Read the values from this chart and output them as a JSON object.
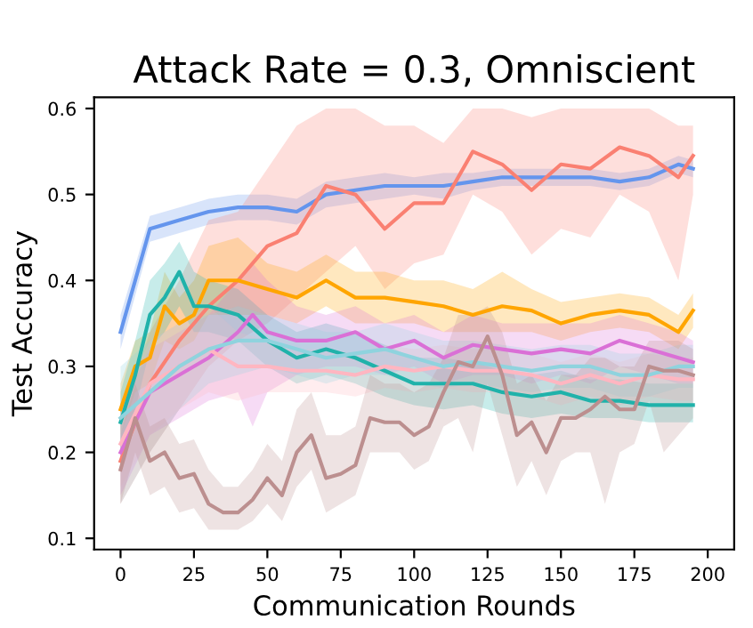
{
  "chart_data": {
    "type": "line",
    "title": "Attack Rate = 0.3, Omniscient",
    "xlabel": "Communication Rounds",
    "ylabel": "Test Accuracy",
    "xlim": [
      -9,
      209
    ],
    "ylim": [
      0.087,
      0.613
    ],
    "xticks": [
      0,
      25,
      50,
      75,
      100,
      125,
      150,
      175,
      200
    ],
    "yticks": [
      0.1,
      0.2,
      0.3,
      0.4,
      0.5,
      0.6
    ],
    "grid": false,
    "legend": false,
    "series": [
      {
        "color": "#6495ed",
        "x": [
          0,
          10,
          20,
          30,
          40,
          50,
          60,
          70,
          80,
          90,
          100,
          110,
          120,
          130,
          140,
          150,
          160,
          170,
          180,
          190,
          195
        ],
        "values": [
          0.34,
          0.46,
          0.47,
          0.48,
          0.485,
          0.485,
          0.48,
          0.5,
          0.505,
          0.51,
          0.51,
          0.51,
          0.515,
          0.52,
          0.52,
          0.52,
          0.52,
          0.515,
          0.52,
          0.535,
          0.53
        ],
        "lower": [
          0.32,
          0.445,
          0.455,
          0.465,
          0.47,
          0.47,
          0.465,
          0.485,
          0.49,
          0.495,
          0.5,
          0.495,
          0.505,
          0.51,
          0.51,
          0.51,
          0.51,
          0.505,
          0.51,
          0.525,
          0.52
        ],
        "upper": [
          0.36,
          0.475,
          0.485,
          0.495,
          0.5,
          0.5,
          0.495,
          0.515,
          0.52,
          0.525,
          0.52,
          0.525,
          0.525,
          0.53,
          0.53,
          0.53,
          0.53,
          0.525,
          0.53,
          0.545,
          0.54
        ]
      },
      {
        "color": "#fa8072",
        "x": [
          0,
          10,
          20,
          30,
          40,
          50,
          60,
          70,
          80,
          90,
          100,
          110,
          120,
          130,
          140,
          150,
          160,
          170,
          180,
          190,
          195
        ],
        "values": [
          0.19,
          0.28,
          0.33,
          0.37,
          0.4,
          0.44,
          0.455,
          0.51,
          0.5,
          0.46,
          0.49,
          0.49,
          0.55,
          0.535,
          0.505,
          0.535,
          0.53,
          0.555,
          0.545,
          0.52,
          0.545
        ],
        "lower": [
          0.14,
          0.2,
          0.25,
          0.3,
          0.33,
          0.35,
          0.38,
          0.41,
          0.44,
          0.39,
          0.42,
          0.43,
          0.5,
          0.48,
          0.43,
          0.46,
          0.45,
          0.5,
          0.48,
          0.4,
          0.5
        ],
        "upper": [
          0.24,
          0.34,
          0.4,
          0.47,
          0.48,
          0.53,
          0.58,
          0.6,
          0.6,
          0.58,
          0.58,
          0.56,
          0.6,
          0.6,
          0.59,
          0.6,
          0.6,
          0.6,
          0.6,
          0.58,
          0.58
        ]
      },
      {
        "color": "#ffa500",
        "x": [
          0,
          5,
          10,
          15,
          20,
          25,
          30,
          40,
          50,
          60,
          70,
          80,
          90,
          100,
          110,
          120,
          130,
          140,
          150,
          160,
          170,
          180,
          190,
          195
        ],
        "values": [
          0.25,
          0.3,
          0.31,
          0.37,
          0.35,
          0.36,
          0.4,
          0.4,
          0.39,
          0.38,
          0.4,
          0.38,
          0.38,
          0.375,
          0.37,
          0.36,
          0.37,
          0.365,
          0.35,
          0.36,
          0.365,
          0.36,
          0.34,
          0.365
        ],
        "lower": [
          0.22,
          0.27,
          0.28,
          0.33,
          0.32,
          0.33,
          0.36,
          0.36,
          0.36,
          0.35,
          0.37,
          0.35,
          0.35,
          0.35,
          0.34,
          0.34,
          0.34,
          0.34,
          0.33,
          0.34,
          0.345,
          0.34,
          0.32,
          0.345
        ],
        "upper": [
          0.28,
          0.33,
          0.34,
          0.41,
          0.38,
          0.4,
          0.44,
          0.45,
          0.42,
          0.41,
          0.43,
          0.41,
          0.41,
          0.4,
          0.4,
          0.39,
          0.41,
          0.39,
          0.375,
          0.38,
          0.385,
          0.38,
          0.36,
          0.385
        ]
      },
      {
        "color": "#20b2aa",
        "x": [
          0,
          5,
          10,
          15,
          20,
          25,
          30,
          40,
          50,
          60,
          70,
          80,
          90,
          100,
          110,
          120,
          130,
          140,
          150,
          160,
          170,
          180,
          190,
          195
        ],
        "values": [
          0.235,
          0.29,
          0.36,
          0.38,
          0.41,
          0.37,
          0.37,
          0.36,
          0.33,
          0.31,
          0.32,
          0.31,
          0.295,
          0.28,
          0.28,
          0.28,
          0.27,
          0.265,
          0.27,
          0.26,
          0.26,
          0.255,
          0.255,
          0.255
        ],
        "lower": [
          0.2,
          0.25,
          0.32,
          0.34,
          0.37,
          0.34,
          0.34,
          0.33,
          0.3,
          0.28,
          0.29,
          0.28,
          0.265,
          0.255,
          0.25,
          0.255,
          0.245,
          0.24,
          0.245,
          0.24,
          0.24,
          0.235,
          0.235,
          0.235
        ],
        "upper": [
          0.27,
          0.33,
          0.4,
          0.42,
          0.445,
          0.41,
          0.4,
          0.39,
          0.36,
          0.34,
          0.35,
          0.34,
          0.325,
          0.31,
          0.31,
          0.305,
          0.295,
          0.29,
          0.295,
          0.285,
          0.285,
          0.28,
          0.28,
          0.28
        ]
      },
      {
        "color": "#da70d6",
        "x": [
          0,
          10,
          20,
          30,
          40,
          45,
          50,
          60,
          70,
          80,
          90,
          100,
          110,
          120,
          130,
          140,
          150,
          160,
          170,
          180,
          190,
          195
        ],
        "values": [
          0.2,
          0.27,
          0.29,
          0.31,
          0.34,
          0.36,
          0.34,
          0.33,
          0.33,
          0.34,
          0.32,
          0.33,
          0.31,
          0.325,
          0.32,
          0.315,
          0.32,
          0.315,
          0.33,
          0.32,
          0.31,
          0.305
        ],
        "lower": [
          0.15,
          0.22,
          0.24,
          0.26,
          0.27,
          0.23,
          0.27,
          0.29,
          0.3,
          0.3,
          0.29,
          0.3,
          0.28,
          0.29,
          0.29,
          0.28,
          0.29,
          0.28,
          0.3,
          0.29,
          0.28,
          0.28
        ],
        "upper": [
          0.25,
          0.32,
          0.34,
          0.36,
          0.4,
          0.42,
          0.4,
          0.37,
          0.36,
          0.37,
          0.35,
          0.36,
          0.34,
          0.36,
          0.35,
          0.35,
          0.35,
          0.35,
          0.36,
          0.35,
          0.34,
          0.33
        ]
      },
      {
        "color": "#ffb6c1",
        "x": [
          0,
          10,
          20,
          30,
          40,
          50,
          60,
          70,
          80,
          90,
          100,
          110,
          120,
          130,
          140,
          150,
          160,
          170,
          180,
          190,
          195
        ],
        "values": [
          0.21,
          0.28,
          0.3,
          0.32,
          0.3,
          0.3,
          0.295,
          0.295,
          0.29,
          0.3,
          0.295,
          0.3,
          0.295,
          0.295,
          0.29,
          0.28,
          0.29,
          0.28,
          0.29,
          0.285,
          0.285
        ],
        "lower": [
          0.16,
          0.22,
          0.25,
          0.27,
          0.26,
          0.27,
          0.27,
          0.27,
          0.265,
          0.275,
          0.27,
          0.275,
          0.27,
          0.27,
          0.265,
          0.255,
          0.265,
          0.255,
          0.265,
          0.26,
          0.26
        ],
        "upper": [
          0.26,
          0.33,
          0.35,
          0.37,
          0.34,
          0.33,
          0.32,
          0.32,
          0.315,
          0.325,
          0.32,
          0.325,
          0.32,
          0.32,
          0.315,
          0.305,
          0.315,
          0.305,
          0.315,
          0.31,
          0.31
        ]
      },
      {
        "color": "#8fd3de",
        "x": [
          0,
          10,
          20,
          30,
          40,
          50,
          60,
          70,
          80,
          90,
          100,
          110,
          120,
          130,
          140,
          150,
          160,
          170,
          180,
          190,
          195
        ],
        "values": [
          0.24,
          0.27,
          0.3,
          0.32,
          0.33,
          0.33,
          0.32,
          0.31,
          0.315,
          0.32,
          0.31,
          0.3,
          0.305,
          0.3,
          0.295,
          0.3,
          0.3,
          0.29,
          0.29,
          0.3,
          0.3
        ],
        "lower": [
          0.14,
          0.2,
          0.25,
          0.28,
          0.29,
          0.3,
          0.29,
          0.28,
          0.29,
          0.29,
          0.28,
          0.275,
          0.28,
          0.275,
          0.27,
          0.275,
          0.275,
          0.265,
          0.265,
          0.275,
          0.275
        ],
        "upper": [
          0.3,
          0.33,
          0.35,
          0.36,
          0.37,
          0.36,
          0.35,
          0.34,
          0.34,
          0.35,
          0.34,
          0.33,
          0.33,
          0.325,
          0.32,
          0.325,
          0.325,
          0.315,
          0.315,
          0.325,
          0.325
        ]
      },
      {
        "color": "#bc8f8f",
        "x": [
          0,
          5,
          10,
          15,
          20,
          25,
          30,
          35,
          40,
          45,
          50,
          55,
          60,
          65,
          70,
          75,
          80,
          85,
          90,
          95,
          100,
          105,
          110,
          115,
          120,
          125,
          130,
          135,
          140,
          145,
          150,
          155,
          160,
          165,
          170,
          175,
          180,
          185,
          190,
          195
        ],
        "values": [
          0.18,
          0.24,
          0.19,
          0.2,
          0.17,
          0.175,
          0.14,
          0.13,
          0.13,
          0.145,
          0.17,
          0.15,
          0.2,
          0.22,
          0.17,
          0.175,
          0.185,
          0.24,
          0.235,
          0.235,
          0.22,
          0.23,
          0.27,
          0.305,
          0.3,
          0.335,
          0.29,
          0.22,
          0.235,
          0.2,
          0.24,
          0.24,
          0.25,
          0.265,
          0.25,
          0.25,
          0.3,
          0.295,
          0.295,
          0.29
        ],
        "lower": [
          0.14,
          0.2,
          0.15,
          0.16,
          0.13,
          0.135,
          0.11,
          0.11,
          0.11,
          0.12,
          0.14,
          0.12,
          0.16,
          0.18,
          0.13,
          0.14,
          0.15,
          0.2,
          0.2,
          0.2,
          0.18,
          0.19,
          0.23,
          0.24,
          0.2,
          0.28,
          0.22,
          0.16,
          0.19,
          0.15,
          0.19,
          0.2,
          0.2,
          0.14,
          0.2,
          0.21,
          0.26,
          0.2,
          0.22,
          0.24
        ],
        "upper": [
          0.22,
          0.28,
          0.23,
          0.24,
          0.21,
          0.215,
          0.18,
          0.16,
          0.16,
          0.18,
          0.21,
          0.19,
          0.25,
          0.27,
          0.22,
          0.22,
          0.23,
          0.29,
          0.28,
          0.28,
          0.27,
          0.28,
          0.31,
          0.36,
          0.36,
          0.37,
          0.34,
          0.28,
          0.29,
          0.26,
          0.29,
          0.29,
          0.31,
          0.31,
          0.3,
          0.3,
          0.33,
          0.33,
          0.33,
          0.32
        ]
      }
    ]
  }
}
